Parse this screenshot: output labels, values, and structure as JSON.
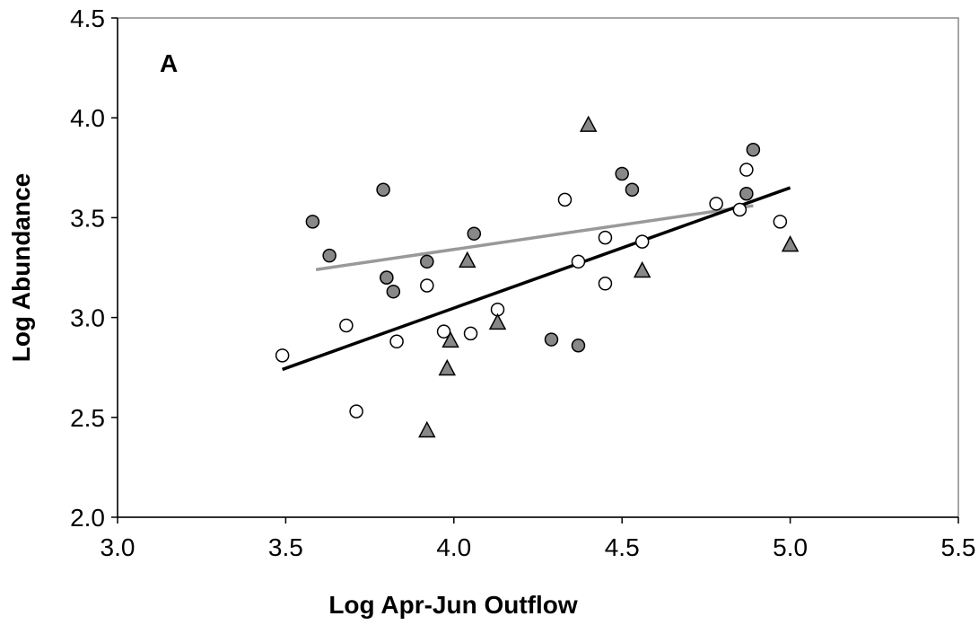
{
  "chart_data": {
    "type": "scatter",
    "panel_label": "A",
    "xlabel": "Log Apr-Jun Outflow",
    "ylabel": "Log Abundance",
    "xlim": [
      3.0,
      5.5
    ],
    "ylim": [
      2.0,
      4.5
    ],
    "xticks": [
      "3.0",
      "3.5",
      "4.0",
      "4.5",
      "5.0",
      "5.5"
    ],
    "yticks": [
      "2.0",
      "2.5",
      "3.0",
      "3.5",
      "4.0",
      "4.5"
    ],
    "grid": false,
    "series": [
      {
        "marker": "circle",
        "fill": "#ffffff",
        "points": [
          [
            3.49,
            2.81
          ],
          [
            3.68,
            2.96
          ],
          [
            3.71,
            2.53
          ],
          [
            3.8,
            3.2
          ],
          [
            3.83,
            2.88
          ],
          [
            3.92,
            3.16
          ],
          [
            3.97,
            2.93
          ],
          [
            4.05,
            2.92
          ],
          [
            4.13,
            3.04
          ],
          [
            4.33,
            3.59
          ],
          [
            4.37,
            3.28
          ],
          [
            4.45,
            3.17
          ],
          [
            4.45,
            3.4
          ],
          [
            4.56,
            3.38
          ],
          [
            4.78,
            3.57
          ],
          [
            4.85,
            3.54
          ],
          [
            4.87,
            3.74
          ],
          [
            4.97,
            3.48
          ]
        ]
      },
      {
        "marker": "circle",
        "fill": "#888888",
        "points": [
          [
            3.58,
            3.48
          ],
          [
            3.63,
            3.31
          ],
          [
            3.79,
            3.64
          ],
          [
            3.8,
            3.2
          ],
          [
            3.82,
            3.13
          ],
          [
            3.92,
            3.28
          ],
          [
            4.06,
            3.42
          ],
          [
            4.29,
            2.89
          ],
          [
            4.37,
            2.86
          ],
          [
            4.5,
            3.72
          ],
          [
            4.53,
            3.64
          ],
          [
            4.87,
            3.62
          ],
          [
            4.89,
            3.84
          ]
        ]
      },
      {
        "marker": "triangle",
        "fill": "#888888",
        "points": [
          [
            3.92,
            2.43
          ],
          [
            3.98,
            2.74
          ],
          [
            3.99,
            2.88
          ],
          [
            4.04,
            3.28
          ],
          [
            4.13,
            2.97
          ],
          [
            4.4,
            3.96
          ],
          [
            4.56,
            3.23
          ],
          [
            5.0,
            3.36
          ]
        ]
      }
    ],
    "trendlines": [
      {
        "color": "#999999",
        "x": [
          3.59,
          4.89
        ],
        "y": [
          3.24,
          3.56
        ]
      },
      {
        "color": "#000000",
        "x": [
          3.49,
          5.0
        ],
        "y": [
          2.74,
          3.65
        ]
      }
    ]
  }
}
